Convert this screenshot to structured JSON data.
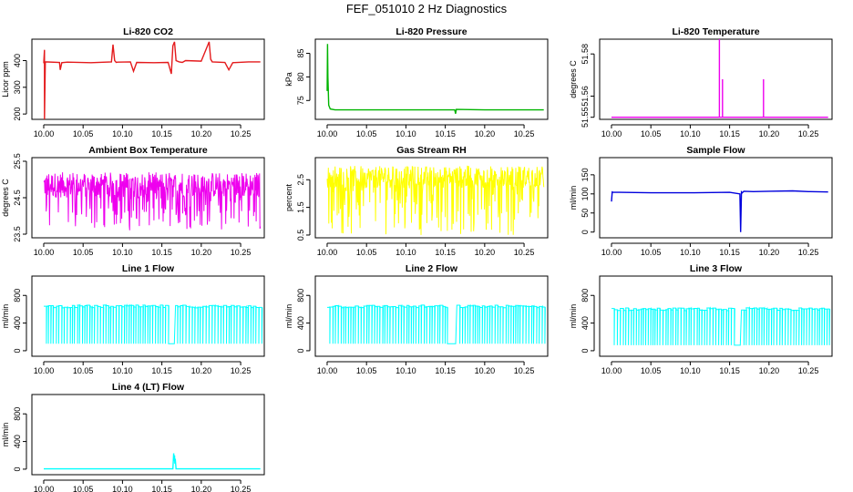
{
  "figure_title": "FEF_051010  2 Hz Diagnostics",
  "chart_data": [
    {
      "type": "line",
      "title": "Li-820 CO2",
      "ylabel": "Licor ppm",
      "xlim": [
        9.985,
        10.28
      ],
      "ylim": [
        180,
        480
      ],
      "x_ticks": [
        "10.00",
        "10.05",
        "10.10",
        "10.15",
        "10.20",
        "10.25"
      ],
      "y_ticks": [
        "200",
        "300",
        "400"
      ],
      "color": "#e41a1c",
      "series": [
        {
          "x": [
            10.0,
            10.001,
            10.001,
            10.002,
            10.002,
            10.02,
            10.021,
            10.023,
            10.03,
            10.06,
            10.086,
            10.088,
            10.09,
            10.092,
            10.094,
            10.11,
            10.114,
            10.118,
            10.14,
            10.158,
            10.162,
            10.164,
            10.166,
            10.168,
            10.172,
            10.176,
            10.18,
            10.2,
            10.21,
            10.212,
            10.214,
            10.23,
            10.235,
            10.24,
            10.26,
            10.275
          ],
          "y": [
            390,
            440,
            180,
            390,
            395,
            393,
            365,
            392,
            394,
            392,
            395,
            460,
            400,
            393,
            394,
            395,
            360,
            393,
            392,
            393,
            350,
            455,
            470,
            400,
            395,
            393,
            400,
            398,
            470,
            405,
            395,
            393,
            365,
            392,
            395,
            395
          ]
        }
      ]
    },
    {
      "type": "line",
      "title": "Li-820 Pressure",
      "ylabel": "kPa",
      "xlim": [
        9.985,
        10.28
      ],
      "ylim": [
        71,
        88
      ],
      "x_ticks": [
        "10.00",
        "10.05",
        "10.10",
        "10.15",
        "10.20",
        "10.25"
      ],
      "y_ticks": [
        "75",
        "80",
        "85"
      ],
      "color": "#00b400",
      "series": [
        {
          "x": [
            10.0,
            10.0005,
            10.001,
            10.002,
            10.004,
            10.01,
            10.05,
            10.1,
            10.15,
            10.162,
            10.163,
            10.164,
            10.2,
            10.25,
            10.275
          ],
          "y": [
            77,
            87,
            80,
            74,
            73.2,
            73.0,
            73.0,
            73.0,
            73.0,
            73.0,
            72.2,
            73.1,
            73.0,
            73.0,
            73.0
          ]
        }
      ]
    },
    {
      "type": "line",
      "title": "Li-820 Temperature",
      "ylabel": "degrees C",
      "xlim": [
        9.985,
        10.28
      ],
      "ylim": [
        51.549,
        51.587
      ],
      "x_ticks": [
        "10.00",
        "10.05",
        "10.10",
        "10.15",
        "10.20",
        "10.25"
      ],
      "y_ticks": [
        "51.55",
        "51.56",
        "51.58"
      ],
      "color": "#ee00ee",
      "series": [
        {
          "x": [
            10.0,
            10.137,
            10.137,
            10.137,
            10.141,
            10.141,
            10.141,
            10.193,
            10.193,
            10.193,
            10.275
          ],
          "y": [
            51.55,
            51.55,
            51.587,
            51.55,
            51.55,
            51.568,
            51.55,
            51.55,
            51.568,
            51.55,
            51.55
          ]
        }
      ]
    },
    {
      "type": "line",
      "title": "Ambient Box Temperature",
      "ylabel": "degrees C",
      "xlim": [
        9.985,
        10.28
      ],
      "ylim": [
        23.4,
        25.6
      ],
      "x_ticks": [
        "10.00",
        "10.05",
        "10.10",
        "10.15",
        "10.20",
        "10.25"
      ],
      "y_ticks": [
        "23.5",
        "24.5",
        "25.5"
      ],
      "color": "#ee00ee",
      "noise": {
        "low": 23.6,
        "high": 25.3,
        "base_low": 24.5,
        "base_high": 25.2
      },
      "series": []
    },
    {
      "type": "line",
      "title": "Gas Stream RH",
      "ylabel": "percent",
      "xlim": [
        9.985,
        10.28
      ],
      "ylim": [
        0.4,
        3.3
      ],
      "x_ticks": [
        "10.00",
        "10.05",
        "10.10",
        "10.15",
        "10.20",
        "10.25"
      ],
      "y_ticks": [
        "0.5",
        "1.5",
        "2.5"
      ],
      "color": "#ffff00",
      "noise": {
        "low": 0.5,
        "high": 3.0,
        "base_low": 2.2,
        "base_high": 3.0
      },
      "series": []
    },
    {
      "type": "line",
      "title": "Sample Flow",
      "ylabel": "ml/min",
      "xlim": [
        9.985,
        10.28
      ],
      "ylim": [
        -15,
        195
      ],
      "x_ticks": [
        "10.00",
        "10.05",
        "10.10",
        "10.15",
        "10.20",
        "10.25"
      ],
      "y_ticks": [
        "0",
        "50",
        "100",
        "150"
      ],
      "color": "#0000dd",
      "series": [
        {
          "x": [
            10.0,
            10.001,
            10.002,
            10.01,
            10.05,
            10.1,
            10.15,
            10.163,
            10.164,
            10.165,
            10.166,
            10.168,
            10.18,
            10.2,
            10.23,
            10.25,
            10.275
          ],
          "y": [
            80,
            105,
            104,
            104,
            103,
            103,
            104,
            100,
            0,
            105,
            103,
            107,
            106,
            107,
            108,
            106,
            105
          ]
        }
      ]
    },
    {
      "type": "line",
      "title": "Line 1 Flow",
      "ylabel": "ml/min",
      "xlim": [
        9.985,
        10.28
      ],
      "ylim": [
        -80,
        1080
      ],
      "x_ticks": [
        "10.00",
        "10.05",
        "10.10",
        "10.15",
        "10.20",
        "10.25"
      ],
      "y_ticks": [
        "0",
        "400",
        "800"
      ],
      "color": "#00ffff",
      "pulse": {
        "high": 640,
        "low": 100,
        "gaps": [
          [
            10.157,
            10.166
          ]
        ]
      },
      "series": []
    },
    {
      "type": "line",
      "title": "Line 2 Flow",
      "ylabel": "ml/min",
      "xlim": [
        9.985,
        10.28
      ],
      "ylim": [
        -80,
        1080
      ],
      "x_ticks": [
        "10.00",
        "10.05",
        "10.10",
        "10.15",
        "10.20",
        "10.25"
      ],
      "y_ticks": [
        "0",
        "400",
        "800"
      ],
      "color": "#00ffff",
      "pulse": {
        "high": 640,
        "low": 100,
        "gaps": [
          [
            10.152,
            10.164
          ]
        ]
      },
      "series": []
    },
    {
      "type": "line",
      "title": "Line 3 Flow",
      "ylabel": "ml/min",
      "xlim": [
        9.985,
        10.28
      ],
      "ylim": [
        -80,
        1080
      ],
      "x_ticks": [
        "10.00",
        "10.05",
        "10.10",
        "10.15",
        "10.20",
        "10.25"
      ],
      "y_ticks": [
        "0",
        "400",
        "800"
      ],
      "color": "#00ffff",
      "pulse": {
        "high": 600,
        "low": 80,
        "gaps": [
          [
            10.153,
            10.165
          ]
        ]
      },
      "series": []
    },
    {
      "type": "line",
      "title": "Line 4 (LT) Flow",
      "ylabel": "ml/min",
      "xlim": [
        9.985,
        10.28
      ],
      "ylim": [
        -80,
        1080
      ],
      "x_ticks": [
        "10.00",
        "10.05",
        "10.10",
        "10.15",
        "10.20",
        "10.25"
      ],
      "y_ticks": [
        "0",
        "400",
        "800"
      ],
      "color": "#00ffff",
      "series": [
        {
          "x": [
            10.0,
            10.1,
            10.164,
            10.165,
            10.1655,
            10.166,
            10.1665,
            10.167,
            10.168,
            10.2,
            10.275
          ],
          "y": [
            5,
            5,
            5,
            230,
            120,
            200,
            80,
            150,
            5,
            5,
            5
          ]
        }
      ]
    }
  ]
}
